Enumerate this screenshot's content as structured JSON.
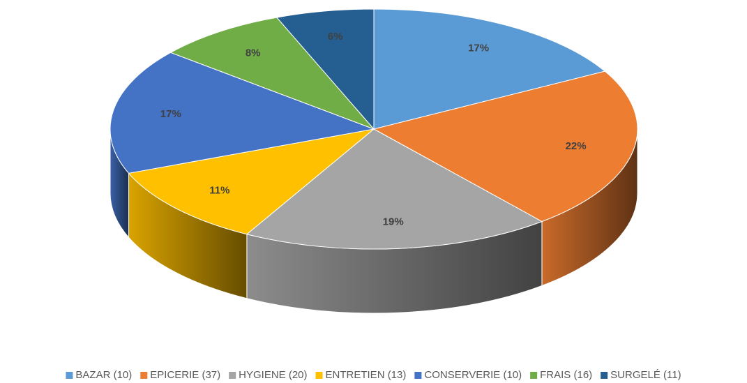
{
  "chart_data": {
    "type": "pie",
    "categories": [
      "BAZAR (10)",
      "EPICERIE (37)",
      "HYGIENE (20)",
      "ENTRETIEN (13)",
      "CONSERVERIE (10)",
      "FRAIS (16)",
      "SURGELÉ (11)"
    ],
    "values": [
      17,
      22,
      19,
      11,
      17,
      8,
      6
    ],
    "value_labels": [
      "17%",
      "22%",
      "19%",
      "11%",
      "17%",
      "8%",
      "6%"
    ],
    "colors": [
      "#5b9bd5",
      "#ed7d31",
      "#a5a5a5",
      "#ffc000",
      "#4472c4",
      "#70ad47",
      "#255e91"
    ],
    "legend": "bottom"
  }
}
